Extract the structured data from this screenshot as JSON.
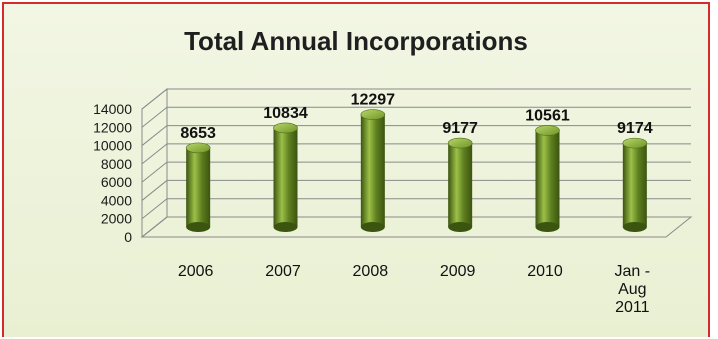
{
  "chart_data": {
    "type": "bar",
    "title": "Total Annual Incorporations",
    "categories": [
      "2006",
      "2007",
      "2008",
      "2009",
      "2010",
      "Jan - Aug 2011"
    ],
    "category_lines": [
      [
        "2006"
      ],
      [
        "2007"
      ],
      [
        "2008"
      ],
      [
        "2009"
      ],
      [
        "2010"
      ],
      [
        "Jan -",
        "Aug",
        "2011"
      ]
    ],
    "values": [
      8653,
      10834,
      12297,
      9177,
      10561,
      9174
    ],
    "xlabel": "",
    "ylabel": "",
    "ylim": [
      0,
      14000
    ],
    "yticks": [
      0,
      2000,
      4000,
      6000,
      8000,
      10000,
      12000,
      14000
    ],
    "grid": true,
    "legend": "none",
    "bar_style": "3d-cylinder",
    "colors": {
      "bar": "#5e7f1f",
      "bar_highlight": "#9cc048",
      "bar_shadow": "#3b5410",
      "frame": "#d62b2b",
      "background": "#eef3dc"
    }
  }
}
